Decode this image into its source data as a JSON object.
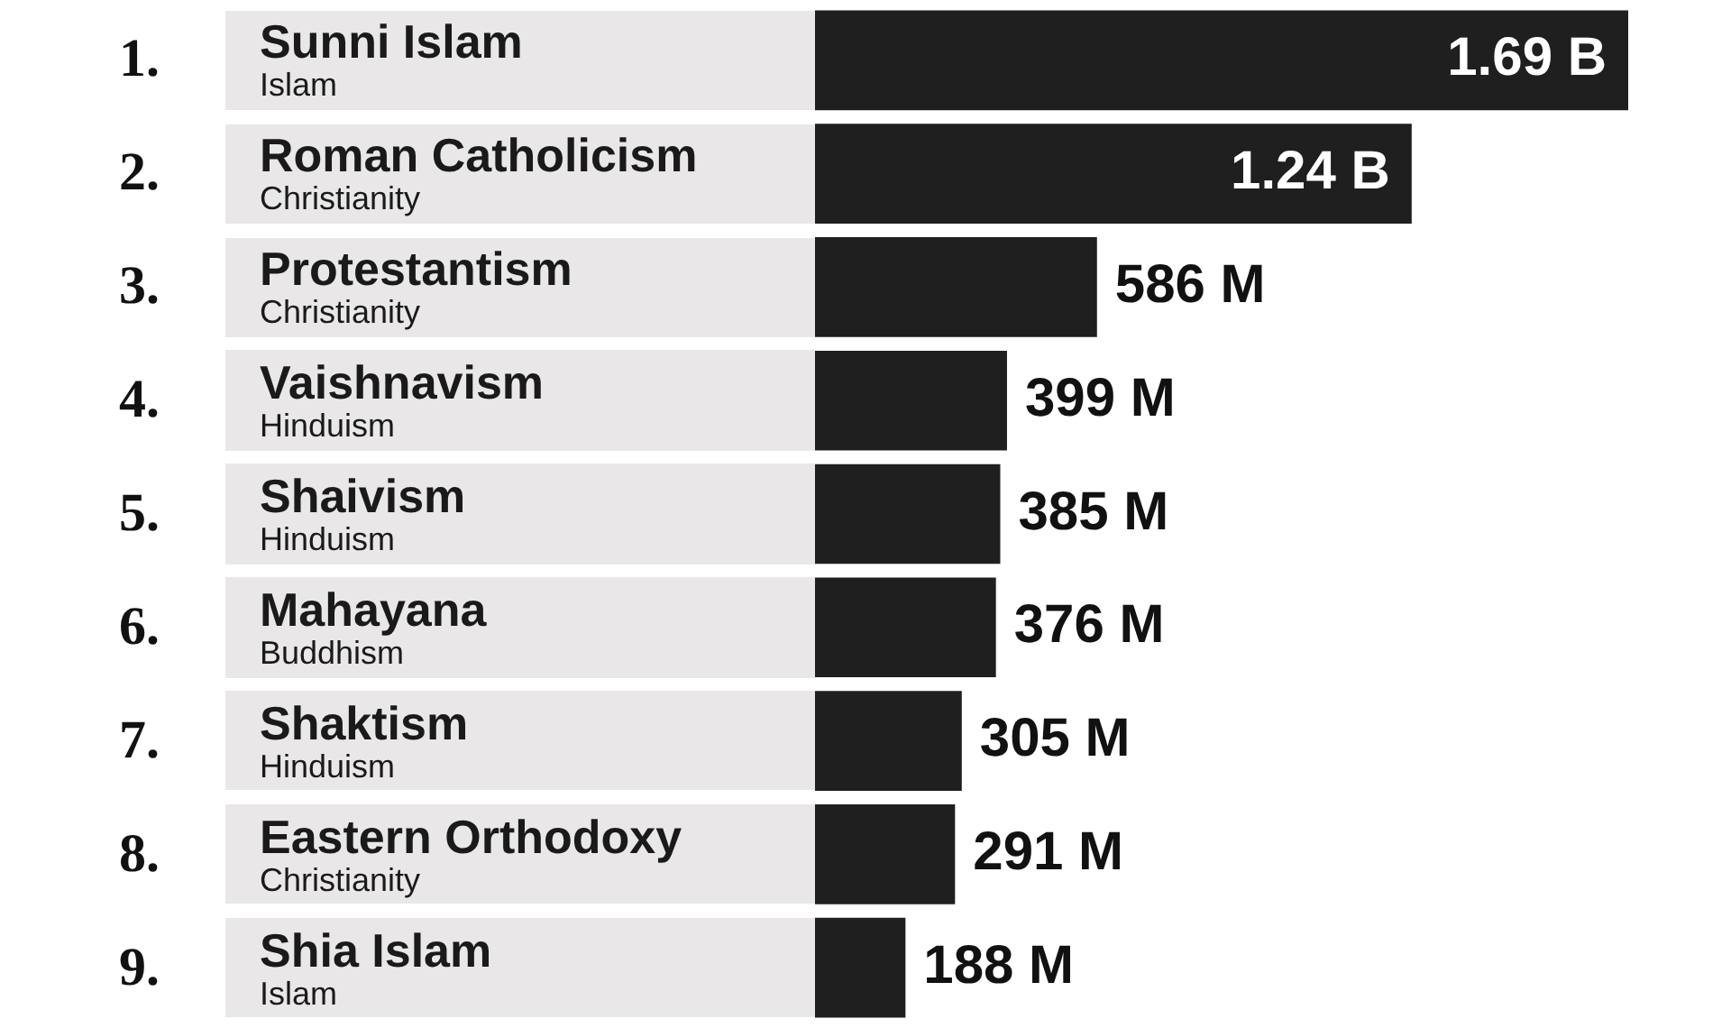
{
  "chart_data": {
    "type": "bar",
    "orientation": "horizontal",
    "categories": [
      "Sunni Islam\nIslam",
      "Roman Catholicism\nChristianity",
      "Protestantism\nChristianity",
      "Vaishnavism\nHinduism",
      "Shaivism\nHinduism",
      "Mahayana\nBuddhism",
      "Shaktism\nHinduism",
      "Eastern Orthodoxy\nChristianity",
      "Shia Islam\nIslam"
    ],
    "values": [
      1690000000,
      1240000000,
      586000000,
      399000000,
      385000000,
      376000000,
      305000000,
      291000000,
      188000000
    ],
    "value_labels": [
      "1.69 B",
      "1.24 B",
      "586 M",
      "399 M",
      "385 M",
      "376 M",
      "305 M",
      "291 M",
      "188 M"
    ],
    "color": "#1f1f1f",
    "xlim": [
      0,
      1690000000
    ],
    "annotations": [
      "1.",
      "2.",
      "3.",
      "4.",
      "5.",
      "6.",
      "7.",
      "8.",
      "9."
    ],
    "tick_labels": "y",
    "legend": false
  }
}
